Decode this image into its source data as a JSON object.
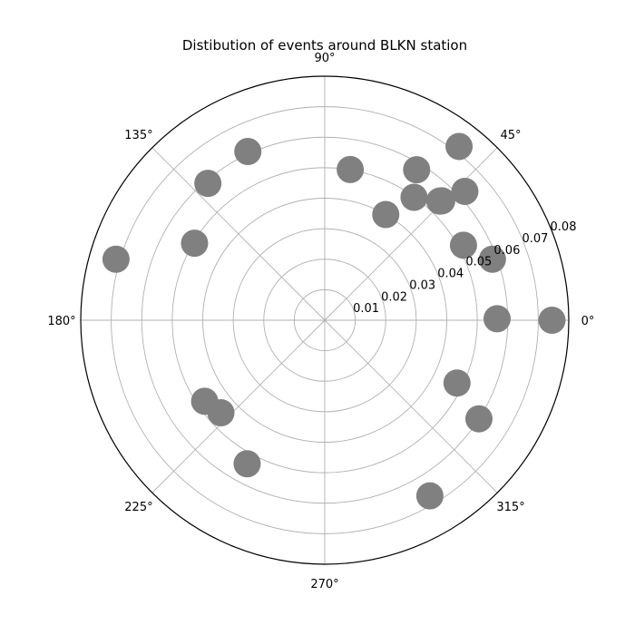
{
  "chart_data": {
    "type": "scatter",
    "projection": "polar",
    "title": "Distibution of events around BLKN station",
    "angle_unit": "degrees",
    "angular_ticks": [
      "0°",
      "45°",
      "90°",
      "135°",
      "180°",
      "225°",
      "270°",
      "315°"
    ],
    "angular_tick_values": [
      0,
      45,
      90,
      135,
      180,
      225,
      270,
      315
    ],
    "radial_ticks": [
      "0.01",
      "0.02",
      "0.03",
      "0.04",
      "0.05",
      "0.06",
      "0.07",
      "0.08"
    ],
    "radial_tick_values": [
      0.01,
      0.02,
      0.03,
      0.04,
      0.05,
      0.06,
      0.07,
      0.08
    ],
    "rlim": [
      0,
      0.08
    ],
    "grid": true,
    "marker_color": "#808080",
    "points": [
      {
        "theta": 0.0,
        "r": 0.0745
      },
      {
        "theta": 0.5,
        "r": 0.0565
      },
      {
        "theta": 20.0,
        "r": 0.0585
      },
      {
        "theta": 28.4,
        "r": 0.0517
      },
      {
        "theta": 42.6,
        "r": 0.0624
      },
      {
        "theta": 52.3,
        "r": 0.072
      },
      {
        "theta": 45.6,
        "r": 0.0548
      },
      {
        "theta": 46.0,
        "r": 0.0543
      },
      {
        "theta": 54.0,
        "r": 0.0498
      },
      {
        "theta": 58.6,
        "r": 0.0578
      },
      {
        "theta": 60.0,
        "r": 0.04
      },
      {
        "theta": 80.4,
        "r": 0.0501
      },
      {
        "theta": 114.5,
        "r": 0.0608
      },
      {
        "theta": 130.5,
        "r": 0.059
      },
      {
        "theta": 149.4,
        "r": 0.0496
      },
      {
        "theta": 163.7,
        "r": 0.0713
      },
      {
        "theta": 214.0,
        "r": 0.0475
      },
      {
        "theta": 221.7,
        "r": 0.0456
      },
      {
        "theta": 241.6,
        "r": 0.0535
      },
      {
        "theta": 334.6,
        "r": 0.048
      },
      {
        "theta": 327.4,
        "r": 0.06
      },
      {
        "theta": 300.9,
        "r": 0.0671
      }
    ]
  }
}
